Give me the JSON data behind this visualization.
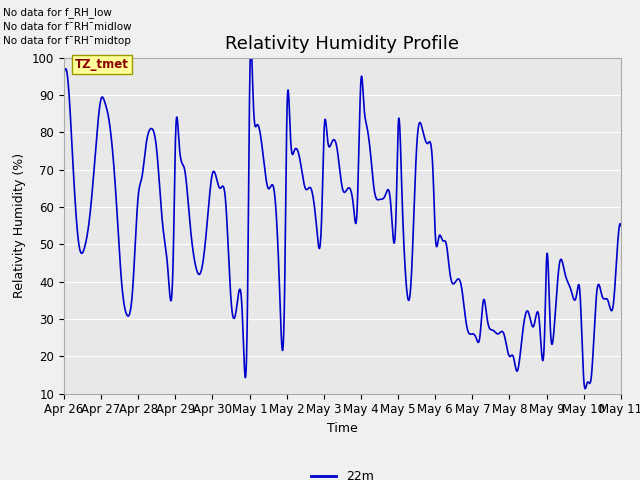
{
  "title": "Relativity Humidity Profile",
  "xlabel": "Time",
  "ylabel": "Relativity Humidity (%)",
  "ylim": [
    10,
    100
  ],
  "yticks": [
    10,
    20,
    30,
    40,
    50,
    60,
    70,
    80,
    90,
    100
  ],
  "line_color": "#0000CC",
  "line_width": 1.2,
  "legend_label": "22m",
  "legend_color": "#0000CC",
  "no_data_texts": [
    "No data for f_RH_low",
    "No data for f¯RH¯midlow",
    "No data for f¯RH¯midtop"
  ],
  "tz_tmet_label": "TZ_tmet",
  "plot_bg_color": "#E8E8E8",
  "x_tick_labels": [
    "Apr 26",
    "Apr 27",
    "Apr 28",
    "Apr 29",
    "Apr 30",
    "May 1",
    "May 2",
    "May 3",
    "May 4",
    "May 5",
    "May 6",
    "May 7",
    "May 8",
    "May 9",
    "May 10",
    "May 11"
  ],
  "grid_color": "#ffffff",
  "title_fontsize": 13,
  "axis_fontsize": 9,
  "tick_fontsize": 8.5,
  "key_t": [
    0.0,
    0.04,
    0.08,
    0.15,
    0.25,
    0.4,
    0.55,
    0.7,
    0.85,
    1.0,
    1.1,
    1.2,
    1.4,
    1.55,
    1.7,
    1.85,
    2.0,
    2.1,
    2.2,
    2.35,
    2.5,
    2.65,
    2.8,
    2.95,
    3.0,
    3.1,
    3.25,
    3.4,
    3.55,
    3.7,
    3.85,
    4.0,
    4.1,
    4.2,
    4.35,
    4.5,
    4.65,
    4.8,
    4.95,
    5.0,
    5.1,
    5.2,
    5.35,
    5.5,
    5.65,
    5.8,
    5.95,
    6.0,
    6.1,
    6.2,
    6.35,
    6.5,
    6.65,
    6.8,
    6.95,
    7.0,
    7.1,
    7.2,
    7.35,
    7.5,
    7.65,
    7.8,
    7.9,
    8.0,
    8.08,
    8.15,
    8.25,
    8.35,
    8.5,
    8.65,
    8.8,
    8.95,
    9.0,
    9.1,
    9.2,
    9.35,
    9.5,
    9.65,
    9.8,
    9.95,
    10.0,
    10.1,
    10.2,
    10.3,
    10.4,
    10.55,
    10.7,
    10.85,
    11.0,
    11.1,
    11.2,
    11.3,
    11.4,
    11.55,
    11.7,
    11.85,
    12.0,
    12.1,
    12.2,
    12.35,
    12.5,
    12.65,
    12.8,
    12.95,
    13.0,
    13.1,
    13.2,
    13.35,
    13.5,
    13.65,
    13.8,
    13.9,
    14.0,
    14.1,
    14.2,
    14.35,
    14.5,
    14.65,
    14.8,
    14.9,
    15.0
  ],
  "key_v": [
    96,
    97,
    96,
    88,
    70,
    50,
    49,
    58,
    75,
    89,
    88,
    84,
    63,
    40,
    31,
    38,
    63,
    68,
    76,
    81,
    75,
    56,
    43,
    50,
    77,
    77,
    70,
    55,
    44,
    43,
    55,
    69,
    68,
    65,
    62,
    35,
    33,
    32,
    40,
    91,
    88,
    82,
    75,
    65,
    65,
    40,
    42,
    82,
    79,
    75,
    73,
    65,
    65,
    55,
    60,
    79,
    78,
    77,
    76,
    65,
    65,
    60,
    60,
    94,
    87,
    82,
    75,
    65,
    62,
    63,
    61,
    60,
    81,
    65,
    42,
    40,
    76,
    81,
    77,
    67,
    53,
    52,
    51,
    50,
    42,
    40,
    39,
    28,
    26,
    25,
    25,
    35,
    30,
    27,
    26,
    26,
    20,
    20,
    16,
    26,
    32,
    28,
    30,
    27,
    46,
    28,
    27,
    45,
    42,
    38,
    36,
    37,
    14,
    13,
    14,
    37,
    36,
    35,
    34,
    48,
    55
  ]
}
